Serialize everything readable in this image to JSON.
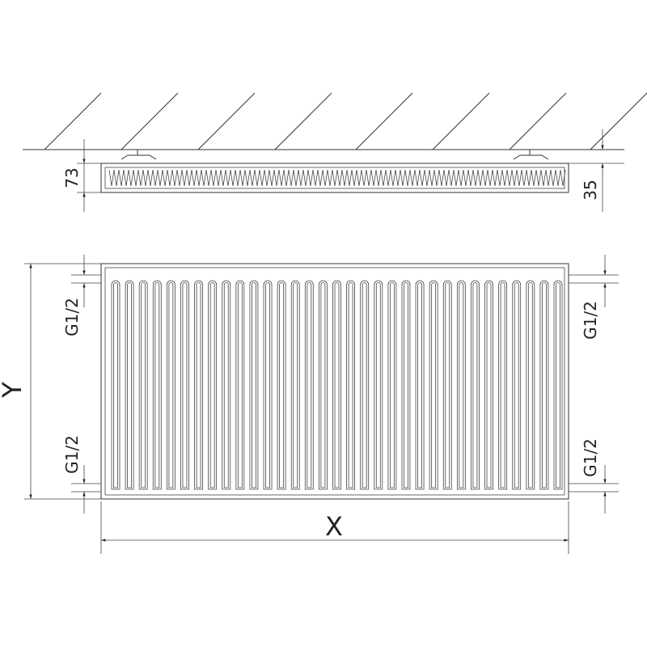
{
  "side_view": {
    "height_label": "73",
    "wall_offset_label": "35"
  },
  "front_view": {
    "width_label": "X",
    "height_label": "Y",
    "connections": [
      "G1/2",
      "G1/2",
      "G1/2",
      "G1/2"
    ],
    "fin_count": 33
  },
  "colors": {
    "line": "#333333",
    "background": "#ffffff"
  }
}
